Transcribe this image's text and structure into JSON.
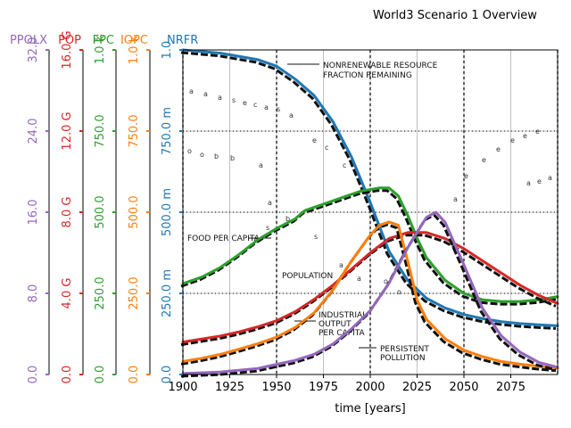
{
  "chart_data": {
    "type": "line",
    "title": "World3 Scenario 1 Overview",
    "xlabel": "time [years]",
    "xlim": [
      1900,
      2100
    ],
    "x_ticks": [
      1900,
      1925,
      1950,
      1975,
      2000,
      2025,
      2050,
      2075
    ],
    "x_tick_labels": [
      "1900",
      "1925",
      "1950",
      "1975",
      "2000",
      "2025",
      "2050",
      "2075"
    ],
    "grid": true,
    "axes": [
      {
        "name": "PPOLX",
        "color": "#9467bd",
        "ylim": [
          0,
          32
        ],
        "tick_labels": [
          "0.0",
          "8.0",
          "16.0",
          "24.0",
          "32.0"
        ]
      },
      {
        "name": "POP",
        "color": "#d62728",
        "ylim": [
          0,
          16000000000
        ],
        "tick_labels": [
          "0.0",
          "4.0 G",
          "8.0 G",
          "12.0 G",
          "16.0 G"
        ]
      },
      {
        "name": "FPC",
        "color": "#2ca02c",
        "ylim": [
          0,
          1000
        ],
        "tick_labels": [
          "0.0",
          "250.0",
          "500.0",
          "750.0",
          "1.0 k"
        ]
      },
      {
        "name": "IOPC",
        "color": "#ff7f0e",
        "ylim": [
          0,
          1000
        ],
        "tick_labels": [
          "0.0",
          "250.0",
          "500.0",
          "750.0",
          "1.0 k"
        ]
      },
      {
        "name": "NRFR",
        "color": "#1f77b4",
        "ylim": [
          0,
          1
        ],
        "tick_labels": [
          "0.0",
          "250.0 m",
          "500.0 m",
          "750.0 m",
          "1.0"
        ]
      }
    ],
    "series": [
      {
        "name": "NRFR",
        "color": "#1f77b4",
        "axis": 4,
        "points": [
          [
            1900,
            1.0
          ],
          [
            1920,
            0.99
          ],
          [
            1940,
            0.97
          ],
          [
            1950,
            0.95
          ],
          [
            1960,
            0.91
          ],
          [
            1970,
            0.86
          ],
          [
            1980,
            0.78
          ],
          [
            1990,
            0.67
          ],
          [
            2000,
            0.53
          ],
          [
            2010,
            0.38
          ],
          [
            2020,
            0.29
          ],
          [
            2030,
            0.235
          ],
          [
            2040,
            0.205
          ],
          [
            2050,
            0.185
          ],
          [
            2060,
            0.172
          ],
          [
            2070,
            0.163
          ],
          [
            2080,
            0.157
          ],
          [
            2090,
            0.153
          ],
          [
            2100,
            0.15
          ]
        ]
      },
      {
        "name": "FPC",
        "color": "#2ca02c",
        "axis": 2,
        "points": [
          [
            1900,
            280
          ],
          [
            1910,
            300
          ],
          [
            1920,
            330
          ],
          [
            1930,
            370
          ],
          [
            1940,
            415
          ],
          [
            1950,
            450
          ],
          [
            1960,
            480
          ],
          [
            1965,
            505
          ],
          [
            1975,
            525
          ],
          [
            1985,
            545
          ],
          [
            1995,
            565
          ],
          [
            2005,
            575
          ],
          [
            2010,
            575
          ],
          [
            2015,
            550
          ],
          [
            2020,
            490
          ],
          [
            2025,
            420
          ],
          [
            2030,
            360
          ],
          [
            2040,
            290
          ],
          [
            2050,
            250
          ],
          [
            2060,
            230
          ],
          [
            2070,
            225
          ],
          [
            2080,
            225
          ],
          [
            2090,
            230
          ],
          [
            2100,
            240
          ]
        ]
      },
      {
        "name": "POP",
        "color": "#d62728",
        "axis": 1,
        "points": [
          [
            1900,
            1600000000.0
          ],
          [
            1910,
            1750000000.0
          ],
          [
            1920,
            1900000000.0
          ],
          [
            1930,
            2100000000.0
          ],
          [
            1940,
            2350000000.0
          ],
          [
            1950,
            2650000000.0
          ],
          [
            1960,
            3100000000.0
          ],
          [
            1970,
            3700000000.0
          ],
          [
            1980,
            4400000000.0
          ],
          [
            1990,
            5200000000.0
          ],
          [
            2000,
            6000000000.0
          ],
          [
            2010,
            6700000000.0
          ],
          [
            2020,
            7000000000.0
          ],
          [
            2030,
            7000000000.0
          ],
          [
            2040,
            6700000000.0
          ],
          [
            2050,
            6200000000.0
          ],
          [
            2060,
            5600000000.0
          ],
          [
            2070,
            5000000000.0
          ],
          [
            2080,
            4400000000.0
          ],
          [
            2090,
            3900000000.0
          ],
          [
            2100,
            3500000000.0
          ]
        ]
      },
      {
        "name": "IOPC",
        "color": "#ff7f0e",
        "axis": 3,
        "points": [
          [
            1900,
            40
          ],
          [
            1910,
            50
          ],
          [
            1920,
            62
          ],
          [
            1930,
            78
          ],
          [
            1940,
            95
          ],
          [
            1950,
            115
          ],
          [
            1960,
            145
          ],
          [
            1970,
            190
          ],
          [
            1980,
            260
          ],
          [
            1990,
            350
          ],
          [
            2000,
            430
          ],
          [
            2005,
            460
          ],
          [
            2010,
            470
          ],
          [
            2015,
            460
          ],
          [
            2020,
            350
          ],
          [
            2025,
            230
          ],
          [
            2030,
            170
          ],
          [
            2040,
            110
          ],
          [
            2050,
            75
          ],
          [
            2060,
            55
          ],
          [
            2070,
            40
          ],
          [
            2080,
            32
          ],
          [
            2090,
            25
          ],
          [
            2100,
            20
          ]
        ]
      },
      {
        "name": "PPOLX",
        "color": "#9467bd",
        "axis": 0,
        "points": [
          [
            1900,
            0.1
          ],
          [
            1920,
            0.25
          ],
          [
            1940,
            0.6
          ],
          [
            1950,
            1.0
          ],
          [
            1960,
            1.4
          ],
          [
            1970,
            2.0
          ],
          [
            1980,
            3.0
          ],
          [
            1990,
            4.5
          ],
          [
            2000,
            6.3
          ],
          [
            2010,
            9.0
          ],
          [
            2020,
            12.5
          ],
          [
            2030,
            15.5
          ],
          [
            2035,
            16.0
          ],
          [
            2040,
            15.0
          ],
          [
            2050,
            10.8
          ],
          [
            2060,
            6.5
          ],
          [
            2070,
            3.8
          ],
          [
            2080,
            2.2
          ],
          [
            2090,
            1.2
          ],
          [
            2100,
            0.7
          ]
        ]
      }
    ],
    "annotations": [
      "NONRENEWABLE RESOURCE",
      "FRACTION REMAINING",
      "FOOD PER CAPITA",
      "POPULATION",
      "INDUSTRIAL",
      "OUTPUT",
      "PER CAPITA",
      "PERSISTENT",
      "POLLUTION"
    ]
  }
}
